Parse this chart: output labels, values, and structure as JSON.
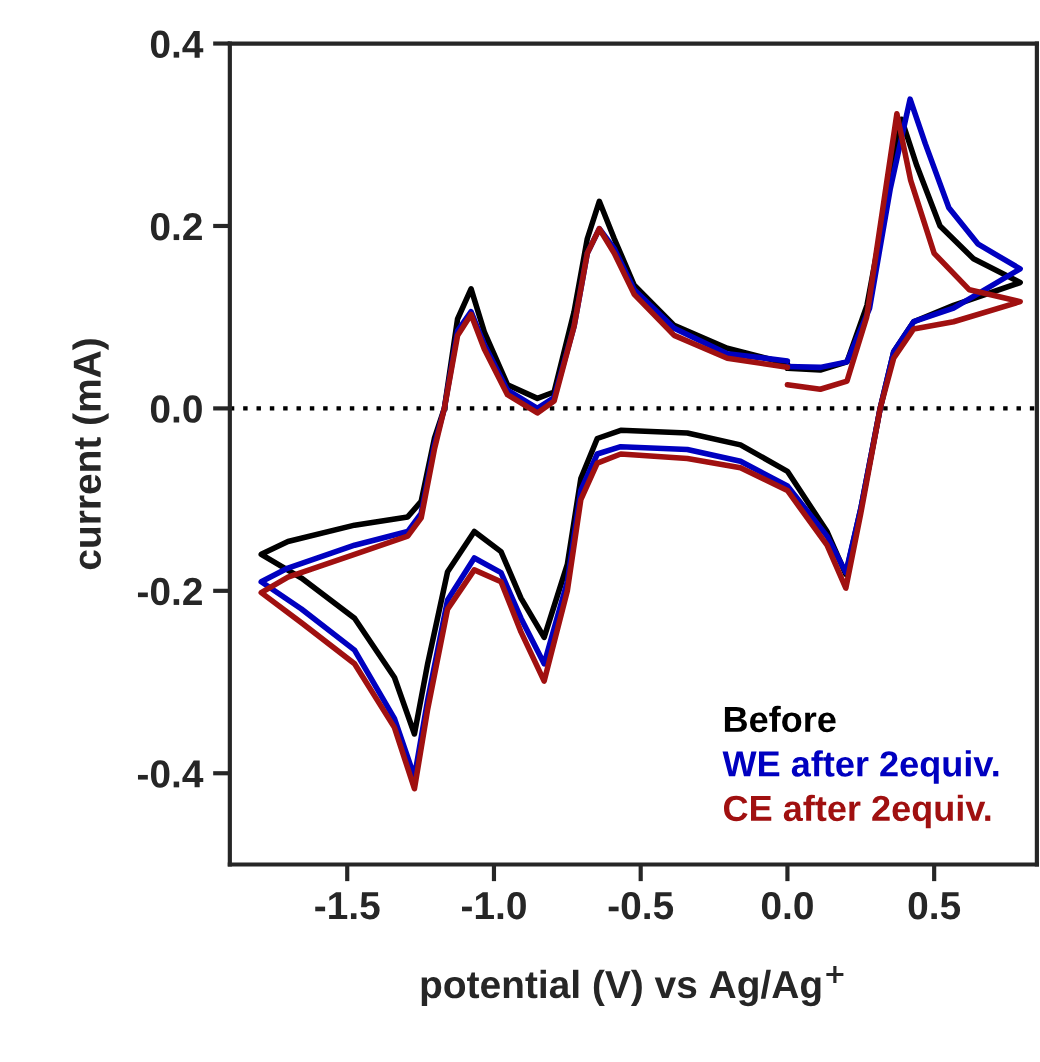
{
  "chart_data": {
    "type": "line",
    "xlabel": "potential (V) vs Ag/Ag$^{+}$",
    "ylabel": "current (mA)",
    "xlim": [
      -1.9,
      0.85
    ],
    "ylim": [
      -0.5,
      0.4
    ],
    "xticks": [
      -1.5,
      {
        "value": -1,
        "label": "-1.0"
      },
      -0.5,
      {
        "value": 0,
        "label": "0.0"
      },
      0.5
    ],
    "yticks": [
      -0.4,
      -0.2,
      {
        "value": 0,
        "label": "0.0"
      },
      0.2,
      0.4
    ],
    "grid": false,
    "legend": "bottom right",
    "marker": "none",
    "line_style": "solid",
    "ref_lines": [
      {
        "axis": "y",
        "value": 0,
        "color": "#000000",
        "line_style": "dotted"
      }
    ],
    "series": [
      {
        "name": "Before",
        "color": "#000000",
        "x": [
          0,
          0.112,
          0.203,
          0.271,
          0.339,
          0.389,
          0.441,
          0.52,
          0.634,
          0.793,
          0.566,
          0.43,
          0.362,
          0.316,
          0.25,
          0.199,
          0.135,
          0,
          -0.16,
          -0.341,
          -0.568,
          -0.648,
          -0.704,
          -0.75,
          -0.829,
          -0.908,
          -0.976,
          -1.067,
          -1.158,
          -1.226,
          -1.271,
          -1.339,
          -1.475,
          -1.656,
          -1.793,
          -1.702,
          -1.475,
          -1.294,
          -1.248,
          -1.203,
          -1.169,
          -1.124,
          -1.078,
          -1.033,
          -0.954,
          -0.852,
          -0.795,
          -0.727,
          -0.682,
          -0.641,
          -0.59,
          -0.522,
          -0.386,
          -0.205,
          0
        ],
        "values": [
          0.044,
          0.042,
          0.051,
          0.113,
          0.23,
          0.317,
          0.266,
          0.2,
          0.164,
          0.138,
          0.113,
          0.095,
          0.062,
          0.0,
          -0.11,
          -0.182,
          -0.135,
          -0.069,
          -0.04,
          -0.027,
          -0.024,
          -0.033,
          -0.077,
          -0.171,
          -0.251,
          -0.208,
          -0.157,
          -0.135,
          -0.179,
          -0.28,
          -0.357,
          -0.295,
          -0.23,
          -0.186,
          -0.16,
          -0.146,
          -0.128,
          -0.119,
          -0.102,
          -0.033,
          0,
          0.098,
          0.131,
          0.084,
          0.026,
          0.011,
          0.018,
          0.106,
          0.186,
          0.227,
          0.186,
          0.135,
          0.091,
          0.066,
          0.049
        ]
      },
      {
        "name": "WE after 2equiv.",
        "color": "#0000c0",
        "x": [
          0,
          0.112,
          0.203,
          0.28,
          0.35,
          0.418,
          0.47,
          0.55,
          0.65,
          0.793,
          0.566,
          0.43,
          0.362,
          0.316,
          0.25,
          0.199,
          0.135,
          0,
          -0.16,
          -0.341,
          -0.568,
          -0.648,
          -0.704,
          -0.75,
          -0.829,
          -0.908,
          -0.976,
          -1.067,
          -1.158,
          -1.226,
          -1.271,
          -1.339,
          -1.475,
          -1.656,
          -1.793,
          -1.702,
          -1.475,
          -1.294,
          -1.248,
          -1.203,
          -1.169,
          -1.124,
          -1.078,
          -1.033,
          -0.954,
          -0.852,
          -0.795,
          -0.727,
          -0.682,
          -0.641,
          -0.59,
          -0.522,
          -0.386,
          -0.205,
          0
        ],
        "values": [
          0.046,
          0.045,
          0.051,
          0.11,
          0.24,
          0.339,
          0.29,
          0.22,
          0.18,
          0.153,
          0.11,
          0.095,
          0.062,
          0.0,
          -0.11,
          -0.18,
          -0.14,
          -0.085,
          -0.058,
          -0.045,
          -0.042,
          -0.05,
          -0.09,
          -0.19,
          -0.28,
          -0.23,
          -0.18,
          -0.164,
          -0.21,
          -0.32,
          -0.404,
          -0.34,
          -0.265,
          -0.22,
          -0.19,
          -0.175,
          -0.15,
          -0.135,
          -0.115,
          -0.04,
          0,
          0.085,
          0.106,
          0.07,
          0.02,
          0.0,
          0.012,
          0.09,
          0.17,
          0.197,
          0.175,
          0.13,
          0.088,
          0.06,
          0.052
        ]
      },
      {
        "name": "CE after 2equiv.",
        "color": "#a01010",
        "x": [
          0,
          0.112,
          0.203,
          0.27,
          0.33,
          0.373,
          0.42,
          0.5,
          0.62,
          0.793,
          0.566,
          0.43,
          0.362,
          0.316,
          0.25,
          0.199,
          0.135,
          0,
          -0.16,
          -0.341,
          -0.568,
          -0.648,
          -0.704,
          -0.75,
          -0.829,
          -0.908,
          -0.976,
          -1.067,
          -1.158,
          -1.226,
          -1.271,
          -1.339,
          -1.475,
          -1.656,
          -1.793,
          -1.702,
          -1.475,
          -1.294,
          -1.248,
          -1.203,
          -1.169,
          -1.124,
          -1.078,
          -1.033,
          -0.954,
          -0.852,
          -0.795,
          -0.727,
          -0.682,
          -0.641,
          -0.59,
          -0.522,
          -0.386,
          -0.205,
          0
        ],
        "values": [
          0.026,
          0.021,
          0.03,
          0.1,
          0.23,
          0.323,
          0.25,
          0.17,
          0.13,
          0.117,
          0.095,
          0.087,
          0.055,
          0.0,
          -0.115,
          -0.197,
          -0.15,
          -0.09,
          -0.065,
          -0.055,
          -0.05,
          -0.06,
          -0.1,
          -0.2,
          -0.299,
          -0.245,
          -0.19,
          -0.177,
          -0.22,
          -0.33,
          -0.417,
          -0.35,
          -0.28,
          -0.235,
          -0.202,
          -0.185,
          -0.16,
          -0.14,
          -0.12,
          -0.045,
          0,
          0.08,
          0.103,
          0.065,
          0.015,
          -0.005,
          0.008,
          0.09,
          0.17,
          0.197,
          0.17,
          0.125,
          0.08,
          0.055,
          0.045
        ]
      }
    ]
  }
}
